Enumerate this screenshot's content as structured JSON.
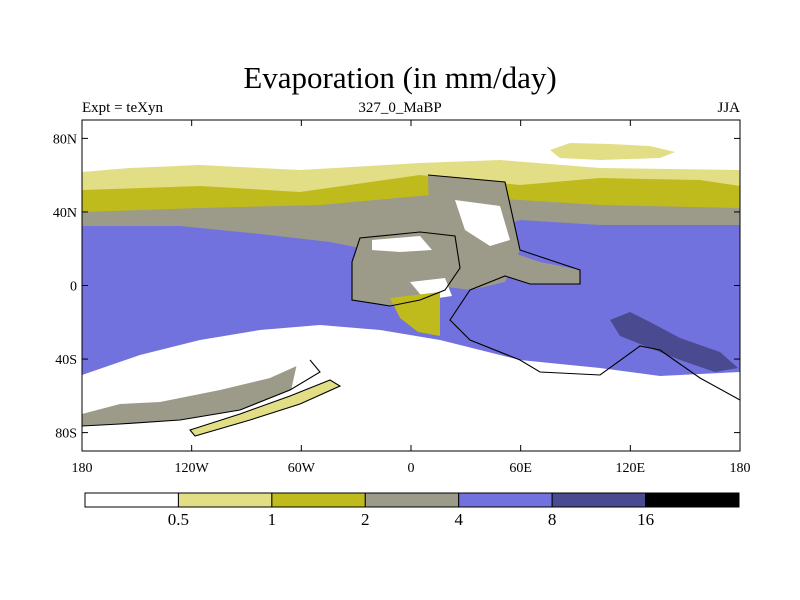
{
  "title": "Evaporation (in mm/day)",
  "subtitle_left": "Expt = teXyn",
  "subtitle_center": "327_0_MaBP",
  "subtitle_right": "JJA",
  "colors": {
    "bin0": "#ffffff",
    "bin1": "#e2de86",
    "bin2": "#c0bb1c",
    "bin3": "#9c9a88",
    "bin4": "#7272de",
    "bin5": "#4a4a90",
    "bin6": "#000000",
    "coast": "#000000"
  },
  "axes": {
    "y_ticks": [
      {
        "value": 80,
        "label": "80N"
      },
      {
        "value": 40,
        "label": "40N"
      },
      {
        "value": 0,
        "label": "0"
      },
      {
        "value": -40,
        "label": "40S"
      },
      {
        "value": -80,
        "label": "80S"
      }
    ],
    "x_ticks": [
      {
        "value": -180,
        "label": "180"
      },
      {
        "value": -120,
        "label": "120W"
      },
      {
        "value": -60,
        "label": "60W"
      },
      {
        "value": 0,
        "label": "0"
      },
      {
        "value": 60,
        "label": "60E"
      },
      {
        "value": 120,
        "label": "120E"
      },
      {
        "value": 180,
        "label": "180"
      }
    ],
    "lon_range": [
      -180,
      180
    ],
    "lat_range": [
      -90,
      90
    ]
  },
  "colorbar": {
    "labels": [
      "0.5",
      "1",
      "2",
      "4",
      "8",
      "16"
    ]
  }
}
